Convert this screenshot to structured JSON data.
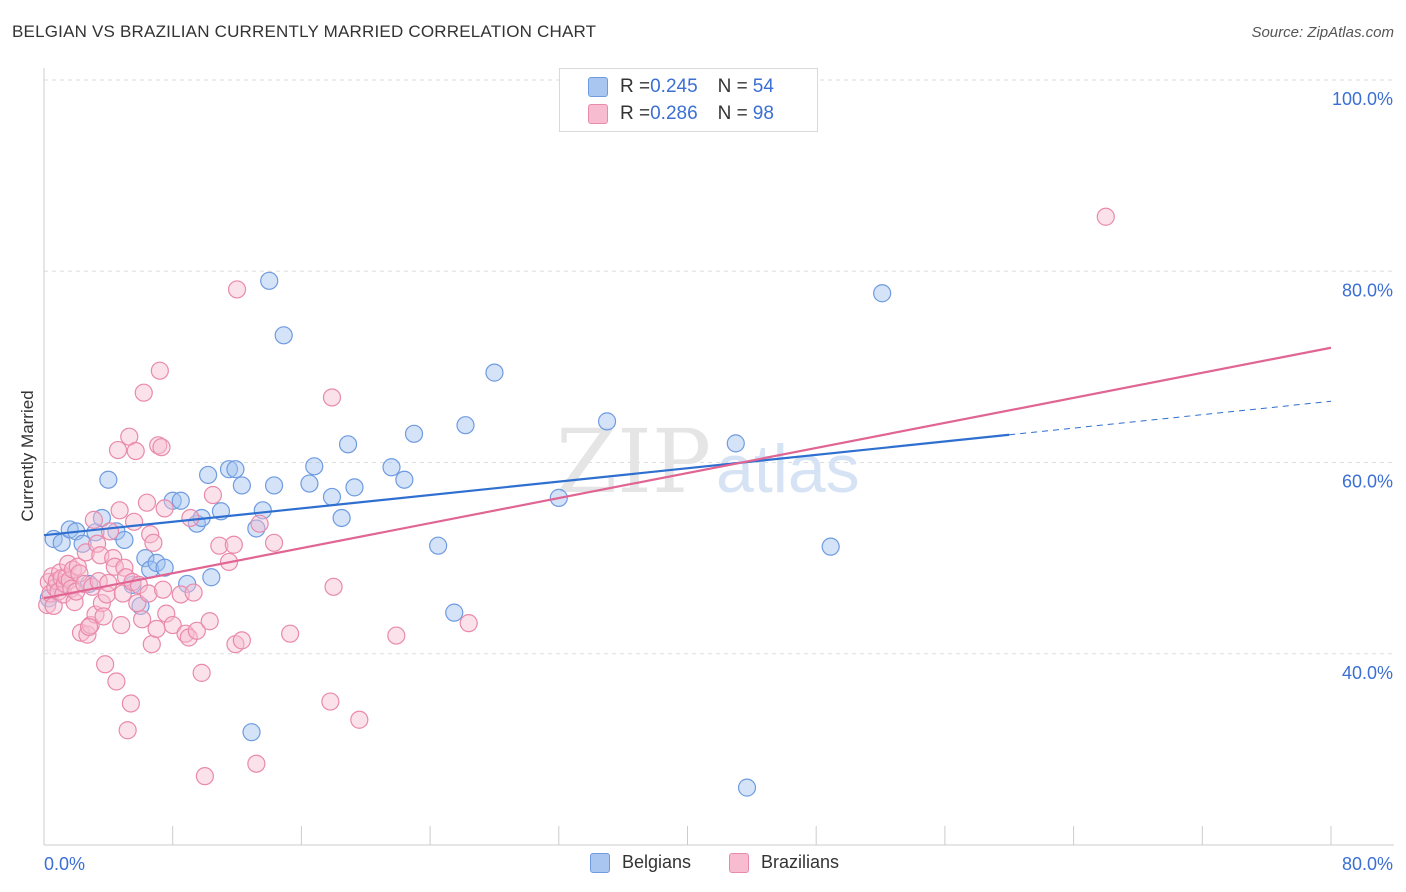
{
  "header": {
    "title": "BELGIAN VS BRAZILIAN CURRENTLY MARRIED CORRELATION CHART",
    "source": "Source: ZipAtlas.com"
  },
  "watermark": {
    "zip": "ZIP",
    "atlas": "atlas"
  },
  "legend": {
    "rows": [
      {
        "r_label": "R = ",
        "r_value": "0.245",
        "n_label": "N = ",
        "n_value": "54",
        "fill": "#a9c6f0",
        "stroke": "#6f9be0"
      },
      {
        "r_label": "R = ",
        "r_value": "0.286",
        "n_label": "N = ",
        "n_value": "98",
        "fill": "#f7bcd0",
        "stroke": "#e98aab"
      }
    ],
    "bottom": [
      {
        "label": "Belgians",
        "fill": "#a9c6f0",
        "stroke": "#6f9be0"
      },
      {
        "label": "Brazilians",
        "fill": "#f7bcd0",
        "stroke": "#e98aab"
      }
    ]
  },
  "chart_data": {
    "type": "scatter",
    "ylabel": "Currently Married",
    "xlim": [
      0,
      80
    ],
    "ylim": [
      20,
      100
    ],
    "y_tick_labels": [
      {
        "value": 40,
        "label": "40.0%"
      },
      {
        "value": 60,
        "label": "60.0%"
      },
      {
        "value": 80,
        "label": "80.0%"
      },
      {
        "value": 100,
        "label": "100.0%"
      }
    ],
    "x_tick_labels": [
      {
        "value": 0,
        "label": "0.0%"
      },
      {
        "value": 80,
        "label": "80.0%"
      }
    ],
    "x_minor_ticks": [
      8,
      16,
      24,
      32,
      40,
      48,
      56,
      64,
      72
    ],
    "grid": "horizontal dashed",
    "legend_position": "top-center",
    "series": [
      {
        "name": "Belgians",
        "color": "#6f9be0",
        "fill": "rgba(160,192,240,0.45)",
        "trend": {
          "x0": 0,
          "y0": 52.4,
          "x1": 60,
          "y1": 62.9,
          "color": "#2e6fd0",
          "dash_to_x": 80,
          "dash_to_y": 66.4
        },
        "points": [
          [
            0.3,
            45.8
          ],
          [
            0.6,
            52.0
          ],
          [
            1.1,
            51.6
          ],
          [
            1.6,
            53.0
          ],
          [
            2.0,
            52.8
          ],
          [
            2.4,
            51.5
          ],
          [
            2.8,
            47.3
          ],
          [
            3.2,
            52.7
          ],
          [
            3.6,
            54.2
          ],
          [
            4.0,
            58.2
          ],
          [
            4.5,
            52.8
          ],
          [
            5.0,
            51.9
          ],
          [
            5.5,
            47.2
          ],
          [
            6.0,
            45.0
          ],
          [
            6.3,
            50.0
          ],
          [
            6.6,
            48.8
          ],
          [
            7.0,
            49.5
          ],
          [
            7.5,
            49.0
          ],
          [
            8.0,
            56.0
          ],
          [
            8.5,
            56.0
          ],
          [
            8.9,
            47.3
          ],
          [
            9.5,
            53.6
          ],
          [
            9.8,
            54.2
          ],
          [
            10.2,
            58.7
          ],
          [
            10.4,
            48.0
          ],
          [
            11.0,
            54.9
          ],
          [
            11.5,
            59.3
          ],
          [
            11.9,
            59.3
          ],
          [
            12.3,
            57.6
          ],
          [
            12.9,
            31.8
          ],
          [
            13.2,
            53.1
          ],
          [
            13.6,
            55.0
          ],
          [
            14.0,
            79.0
          ],
          [
            14.3,
            57.6
          ],
          [
            14.9,
            73.3
          ],
          [
            16.5,
            57.8
          ],
          [
            16.8,
            59.6
          ],
          [
            17.9,
            56.4
          ],
          [
            18.5,
            54.2
          ],
          [
            18.9,
            61.9
          ],
          [
            19.3,
            57.4
          ],
          [
            21.6,
            59.5
          ],
          [
            22.4,
            58.2
          ],
          [
            23.0,
            63.0
          ],
          [
            24.5,
            51.3
          ],
          [
            25.5,
            44.3
          ],
          [
            26.2,
            63.9
          ],
          [
            28.0,
            69.4
          ],
          [
            32.0,
            56.3
          ],
          [
            35.0,
            64.3
          ],
          [
            43.0,
            62.0
          ],
          [
            43.7,
            26.0
          ],
          [
            48.9,
            51.2
          ],
          [
            52.1,
            77.7
          ]
        ]
      },
      {
        "name": "Brazilians",
        "color": "#e98aab",
        "fill": "rgba(247,188,208,0.45)",
        "trend": {
          "x0": 0,
          "y0": 45.8,
          "x1": 80,
          "y1": 72.0,
          "color": "#e06592"
        },
        "points": [
          [
            0.2,
            45.1
          ],
          [
            0.3,
            47.5
          ],
          [
            0.4,
            46.3
          ],
          [
            0.5,
            48.1
          ],
          [
            0.6,
            45.0
          ],
          [
            0.7,
            46.9
          ],
          [
            0.8,
            47.6
          ],
          [
            0.9,
            46.5
          ],
          [
            1.0,
            48.5
          ],
          [
            1.1,
            47.9
          ],
          [
            1.2,
            46.2
          ],
          [
            1.3,
            47.3
          ],
          [
            1.4,
            48.0
          ],
          [
            1.5,
            49.4
          ],
          [
            1.6,
            47.7
          ],
          [
            1.7,
            46.8
          ],
          [
            1.8,
            48.8
          ],
          [
            1.9,
            45.4
          ],
          [
            2.0,
            46.5
          ],
          [
            2.1,
            49.1
          ],
          [
            2.2,
            48.4
          ],
          [
            2.3,
            42.2
          ],
          [
            2.5,
            47.3
          ],
          [
            2.6,
            50.6
          ],
          [
            2.7,
            42.0
          ],
          [
            2.9,
            43.0
          ],
          [
            3.0,
            47.0
          ],
          [
            3.1,
            54.0
          ],
          [
            3.2,
            44.1
          ],
          [
            3.3,
            51.5
          ],
          [
            3.4,
            47.6
          ],
          [
            3.5,
            50.3
          ],
          [
            3.6,
            45.3
          ],
          [
            3.7,
            43.9
          ],
          [
            3.8,
            38.9
          ],
          [
            3.9,
            46.2
          ],
          [
            4.0,
            47.4
          ],
          [
            4.1,
            52.8
          ],
          [
            4.3,
            50.0
          ],
          [
            4.4,
            49.1
          ],
          [
            4.5,
            37.1
          ],
          [
            4.6,
            61.3
          ],
          [
            4.7,
            55.0
          ],
          [
            4.8,
            43.0
          ],
          [
            4.9,
            46.3
          ],
          [
            5.0,
            49.0
          ],
          [
            5.1,
            48.0
          ],
          [
            5.2,
            32.0
          ],
          [
            5.3,
            62.7
          ],
          [
            5.4,
            34.8
          ],
          [
            5.5,
            47.5
          ],
          [
            5.6,
            53.8
          ],
          [
            5.7,
            61.2
          ],
          [
            5.8,
            45.3
          ],
          [
            5.9,
            47.2
          ],
          [
            6.1,
            43.6
          ],
          [
            6.2,
            67.3
          ],
          [
            6.4,
            55.8
          ],
          [
            6.5,
            46.3
          ],
          [
            6.6,
            52.5
          ],
          [
            6.7,
            41.0
          ],
          [
            6.8,
            51.6
          ],
          [
            7.0,
            42.6
          ],
          [
            7.1,
            61.8
          ],
          [
            7.2,
            69.6
          ],
          [
            7.3,
            61.6
          ],
          [
            7.4,
            46.7
          ],
          [
            7.5,
            55.2
          ],
          [
            7.6,
            44.2
          ],
          [
            8.0,
            43.0
          ],
          [
            8.5,
            46.2
          ],
          [
            8.8,
            42.1
          ],
          [
            9.0,
            41.7
          ],
          [
            9.1,
            54.2
          ],
          [
            9.3,
            46.4
          ],
          [
            9.5,
            42.4
          ],
          [
            9.8,
            38.0
          ],
          [
            10.0,
            27.2
          ],
          [
            10.3,
            43.4
          ],
          [
            10.5,
            56.6
          ],
          [
            10.9,
            51.3
          ],
          [
            11.5,
            49.6
          ],
          [
            11.8,
            51.4
          ],
          [
            11.9,
            41.0
          ],
          [
            12.0,
            78.1
          ],
          [
            12.3,
            41.4
          ],
          [
            13.2,
            28.5
          ],
          [
            13.4,
            53.6
          ],
          [
            14.3,
            51.6
          ],
          [
            15.3,
            42.1
          ],
          [
            17.8,
            35.0
          ],
          [
            17.9,
            66.8
          ],
          [
            18.0,
            47.0
          ],
          [
            19.6,
            33.1
          ],
          [
            21.9,
            41.9
          ],
          [
            26.4,
            43.2
          ],
          [
            66.0,
            85.7
          ],
          [
            2.8,
            42.8
          ]
        ]
      }
    ]
  }
}
